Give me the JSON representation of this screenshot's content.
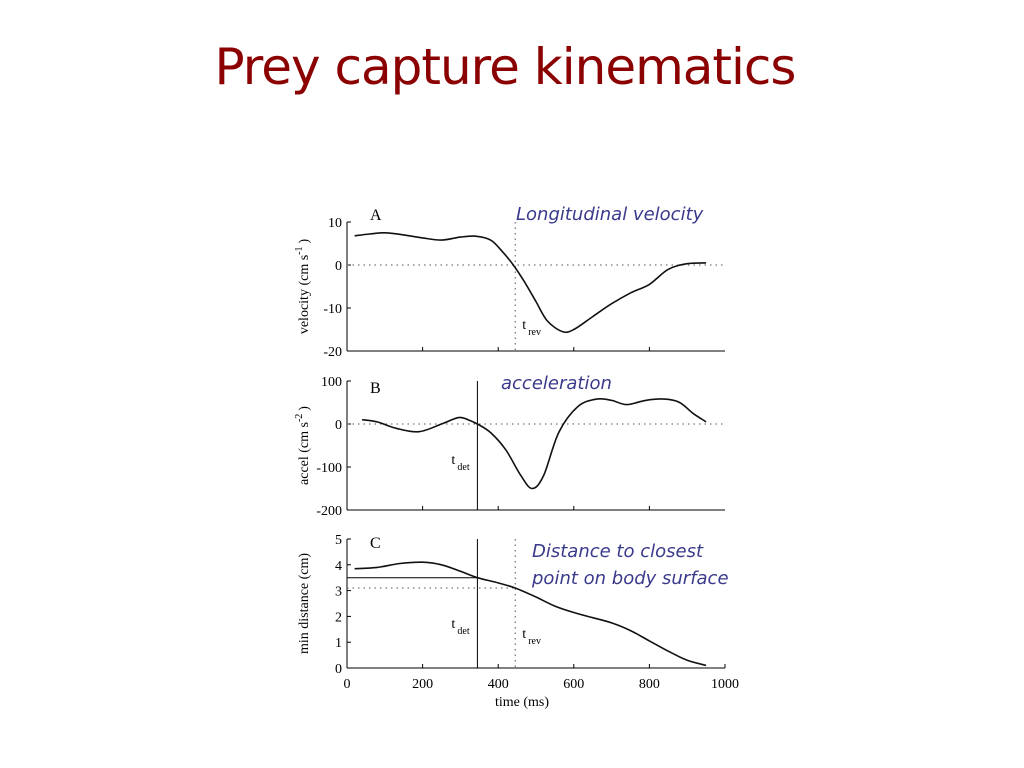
{
  "slide": {
    "title": "Prey capture kinematics",
    "annotations": [
      {
        "lines": [
          "Longitudinal velocity"
        ],
        "color": "#3a3a8c"
      },
      {
        "lines": [
          "acceleration"
        ],
        "color": "#3a3a8c"
      },
      {
        "lines": [
          "Distance to closest",
          "point on body surface"
        ],
        "color": "#3a3a8c"
      }
    ]
  },
  "chart_data": [
    {
      "type": "line",
      "panel": "A",
      "ylabel": "velocity (cm s",
      "ylabel_sup": "-1",
      "ylabel_end": ")",
      "xlim": [
        0,
        1000
      ],
      "ylim": [
        -20,
        10
      ],
      "yticks": [
        10,
        0,
        -10,
        -20
      ],
      "xticks": [
        200,
        400,
        600,
        800
      ],
      "x_tick_labels_shown": false,
      "zero_line": true,
      "markers": [
        {
          "x": 445,
          "style": "dotted",
          "label": "t",
          "label_sub": "rev"
        }
      ],
      "series": [
        {
          "x": [
            20,
            60,
            100,
            150,
            200,
            250,
            300,
            340,
            380,
            410,
            440,
            470,
            500,
            530,
            570,
            600,
            650,
            700,
            750,
            800,
            850,
            900,
            950
          ],
          "y": [
            6.8,
            7.2,
            7.5,
            7.0,
            6.3,
            5.8,
            6.5,
            6.7,
            5.8,
            3.2,
            0,
            -4,
            -8.5,
            -13,
            -15.5,
            -15.0,
            -12.0,
            -9.0,
            -6.5,
            -4.5,
            -1.0,
            0.3,
            0.5
          ]
        }
      ]
    },
    {
      "type": "line",
      "panel": "B",
      "ylabel": "accel (cm s",
      "ylabel_sup": "-2",
      "ylabel_end": ")",
      "xlim": [
        0,
        1000
      ],
      "ylim": [
        -200,
        100
      ],
      "yticks": [
        100,
        0,
        -100,
        -200
      ],
      "xticks": [
        200,
        400,
        600,
        800
      ],
      "x_tick_labels_shown": false,
      "zero_line": true,
      "markers": [
        {
          "x": 345,
          "style": "solid",
          "label": "t",
          "label_sub": "det"
        }
      ],
      "series": [
        {
          "x": [
            40,
            80,
            130,
            190,
            250,
            295,
            320,
            345,
            380,
            420,
            460,
            490,
            520,
            560,
            610,
            660,
            700,
            740,
            790,
            840,
            880,
            915,
            950
          ],
          "y": [
            10,
            5,
            -10,
            -18,
            0,
            15,
            10,
            0,
            -20,
            -60,
            -120,
            -150,
            -120,
            -20,
            40,
            58,
            55,
            45,
            55,
            58,
            50,
            25,
            5
          ]
        }
      ]
    },
    {
      "type": "line",
      "panel": "C",
      "ylabel": "min distance (cm)",
      "xlabel": "time (ms)",
      "xlim": [
        0,
        1000
      ],
      "ylim": [
        0,
        5
      ],
      "yticks": [
        5,
        4,
        3,
        2,
        1,
        0
      ],
      "xticks": [
        0,
        200,
        400,
        600,
        800,
        1000
      ],
      "x_tick_labels_shown": true,
      "zero_line": false,
      "markers": [
        {
          "x": 345,
          "style": "solid",
          "label": "t",
          "label_sub": "det",
          "hline_y": 3.5
        },
        {
          "x": 445,
          "style": "dotted",
          "label": "t",
          "label_sub": "rev",
          "hline_y": 3.1
        }
      ],
      "series": [
        {
          "x": [
            20,
            80,
            140,
            200,
            250,
            300,
            345,
            400,
            445,
            500,
            550,
            600,
            650,
            700,
            750,
            800,
            850,
            900,
            950
          ],
          "y": [
            3.85,
            3.9,
            4.05,
            4.1,
            4.0,
            3.75,
            3.5,
            3.3,
            3.1,
            2.75,
            2.4,
            2.15,
            1.95,
            1.75,
            1.45,
            1.05,
            0.65,
            0.3,
            0.1
          ]
        }
      ]
    }
  ]
}
